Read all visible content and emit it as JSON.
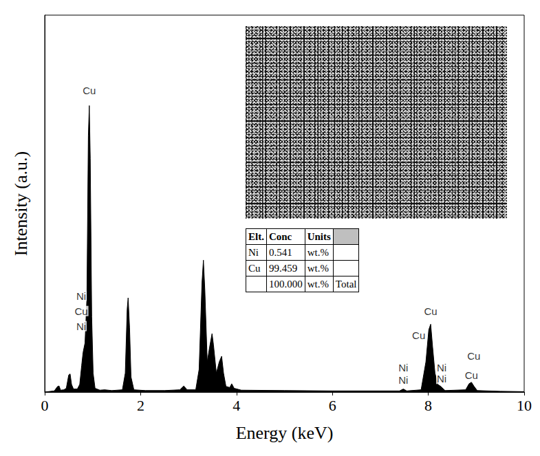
{
  "chart_data": {
    "type": "area",
    "xlabel": "Energy (keV)",
    "ylabel": "Intensity (a.u.)",
    "x": [
      0.0,
      0.2,
      0.27,
      0.3,
      0.33,
      0.4,
      0.45,
      0.5,
      0.53,
      0.56,
      0.6,
      0.68,
      0.73,
      0.77,
      0.8,
      0.84,
      0.88,
      0.91,
      0.93,
      0.95,
      0.98,
      1.01,
      1.05,
      1.15,
      1.25,
      1.4,
      1.62,
      1.68,
      1.72,
      1.74,
      1.77,
      1.8,
      1.86,
      2.1,
      2.5,
      2.82,
      2.9,
      2.97,
      3.15,
      3.22,
      3.28,
      3.31,
      3.34,
      3.39,
      3.44,
      3.49,
      3.52,
      3.58,
      3.64,
      3.69,
      3.73,
      3.78,
      3.86,
      3.9,
      3.95,
      4.1,
      5.0,
      6.0,
      7.0,
      7.4,
      7.48,
      7.55,
      7.85,
      7.95,
      8.01,
      8.05,
      8.09,
      8.14,
      8.2,
      8.26,
      8.35,
      8.78,
      8.85,
      8.9,
      8.95,
      9.02,
      9.5,
      10.0
    ],
    "values": [
      0,
      0.3,
      1.5,
      1.6,
      0.5,
      0.6,
      1.0,
      4.5,
      4.8,
      2.0,
      0.8,
      0.8,
      2.0,
      7.0,
      10.5,
      13.0,
      25,
      68,
      76,
      62,
      20,
      5,
      1.0,
      0.5,
      0.6,
      0.4,
      0.6,
      5,
      22,
      25,
      17,
      4,
      0.6,
      0.4,
      0.4,
      0.6,
      1.6,
      0.6,
      0.6,
      6,
      29,
      35,
      27,
      8,
      12,
      15.5,
      12.5,
      5,
      8,
      9.5,
      5,
      1.5,
      1.2,
      2.2,
      1.0,
      0.5,
      0.4,
      0.3,
      0.3,
      0.3,
      0.8,
      0.3,
      0.6,
      8,
      16.5,
      18,
      12,
      5,
      2,
      1.5,
      0.4,
      0.6,
      2.2,
      2.6,
      1.6,
      0.4,
      0.2,
      0.1
    ],
    "color": "#000000",
    "xlim": [
      0,
      10
    ],
    "xticks": [
      0,
      2,
      4,
      6,
      8,
      10
    ],
    "ylim": [
      0,
      100
    ],
    "grid": false,
    "tick_labels": "x",
    "annotations": [
      {
        "text": "Cu",
        "x": 0.93,
        "y": 80
      },
      {
        "text": "Ni",
        "x": 0.76,
        "y": 25.5
      },
      {
        "text": "Cu",
        "x": 0.76,
        "y": 21.5
      },
      {
        "text": "Ni",
        "x": 0.76,
        "y": 17.5
      },
      {
        "text": "Cu",
        "x": 8.05,
        "y": 21.5
      },
      {
        "text": "Cu",
        "x": 7.8,
        "y": 15
      },
      {
        "text": "Ni",
        "x": 7.48,
        "y": 6.5
      },
      {
        "text": "Ni",
        "x": 7.48,
        "y": 3.2
      },
      {
        "text": "Ni",
        "x": 8.28,
        "y": 6.5
      },
      {
        "text": "Ni",
        "x": 8.28,
        "y": 3.5
      },
      {
        "text": "Cu",
        "x": 8.95,
        "y": 9.5
      },
      {
        "text": "Cu",
        "x": 8.9,
        "y": 4.5
      }
    ]
  },
  "inset_table": {
    "header": [
      "Elt.",
      "Conc",
      "Units",
      null
    ],
    "rows": [
      [
        "Ni",
        "0.541",
        "wt.%",
        null
      ],
      [
        "Cu",
        "99.459",
        "wt.%",
        null
      ],
      [
        null,
        "100.000",
        "wt.%",
        "Total"
      ]
    ]
  }
}
